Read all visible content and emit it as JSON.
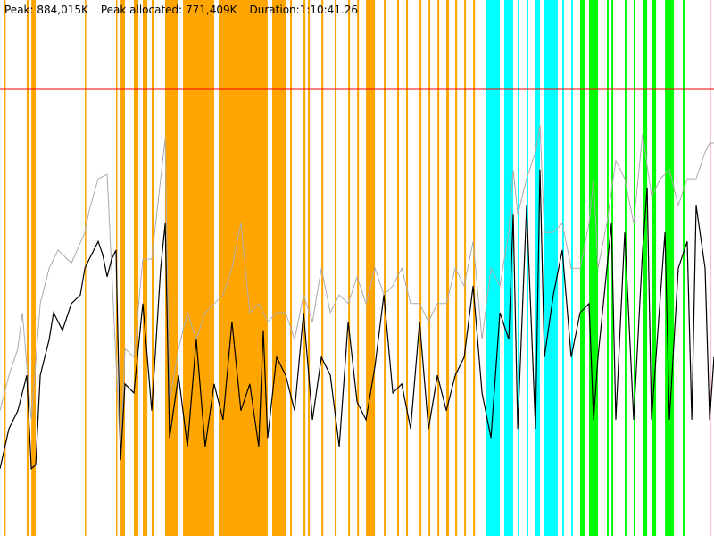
{
  "header": {
    "peak": "Peak: 884,015K",
    "peak_allocated": "Peak allocated: 771,409K",
    "duration": "Duration:1:10:41.26"
  },
  "chart_data": {
    "type": "line",
    "title": "",
    "xlabel": "",
    "ylabel": "",
    "x_unit": "seconds",
    "y_unit": "K",
    "xlim": [
      0,
      4241
    ],
    "ylim": [
      0,
      1060818
    ],
    "grid": false,
    "peak_line": {
      "value": 884015,
      "color": "#ff0000"
    },
    "band_colors": {
      "orange": "#ffa500",
      "cyan": "#00ffff",
      "green": "#00ff00",
      "pink": "#ffc0cb"
    },
    "bands": [
      [
        26,
        29,
        "orange"
      ],
      [
        159,
        175,
        "orange"
      ],
      [
        186,
        212,
        "orange"
      ],
      [
        504,
        507,
        "orange"
      ],
      [
        689,
        692,
        "orange"
      ],
      [
        716,
        742,
        "orange"
      ],
      [
        795,
        822,
        "orange"
      ],
      [
        848,
        875,
        "orange"
      ],
      [
        901,
        912,
        "orange"
      ],
      [
        981,
        1060,
        "orange"
      ],
      [
        1087,
        1272,
        "orange"
      ],
      [
        1299,
        1590,
        "orange"
      ],
      [
        1617,
        1697,
        "orange"
      ],
      [
        1723,
        1734,
        "orange"
      ],
      [
        1803,
        1814,
        "orange"
      ],
      [
        1829,
        1840,
        "orange"
      ],
      [
        1909,
        1920,
        "orange"
      ],
      [
        1988,
        1999,
        "orange"
      ],
      [
        2068,
        2079,
        "orange"
      ],
      [
        2121,
        2132,
        "orange"
      ],
      [
        2174,
        2227,
        "orange"
      ],
      [
        2280,
        2291,
        "orange"
      ],
      [
        2359,
        2370,
        "orange"
      ],
      [
        2412,
        2423,
        "orange"
      ],
      [
        2492,
        2503,
        "orange"
      ],
      [
        2545,
        2556,
        "orange"
      ],
      [
        2598,
        2609,
        "orange"
      ],
      [
        2651,
        2667,
        "orange"
      ],
      [
        2704,
        2715,
        "orange"
      ],
      [
        2757,
        2768,
        "orange"
      ],
      [
        2810,
        2821,
        "orange"
      ],
      [
        2889,
        2969,
        "cyan"
      ],
      [
        2995,
        3048,
        "cyan"
      ],
      [
        3075,
        3085,
        "cyan"
      ],
      [
        3128,
        3138,
        "cyan"
      ],
      [
        3181,
        3207,
        "cyan"
      ],
      [
        3234,
        3313,
        "cyan"
      ],
      [
        3340,
        3350,
        "cyan"
      ],
      [
        3393,
        3403,
        "cyan"
      ],
      [
        3446,
        3472,
        "green"
      ],
      [
        3499,
        3552,
        "green"
      ],
      [
        3605,
        3615,
        "green"
      ],
      [
        3632,
        3642,
        "green"
      ],
      [
        3711,
        3721,
        "green"
      ],
      [
        3764,
        3774,
        "green"
      ],
      [
        3817,
        3844,
        "green"
      ],
      [
        3870,
        3897,
        "green"
      ],
      [
        3950,
        4003,
        "green"
      ],
      [
        4056,
        4066,
        "green"
      ],
      [
        4215,
        4225,
        "pink"
      ]
    ],
    "series": [
      {
        "color": "#aaaaaa",
        "points": [
          [
            0,
            248000
          ],
          [
            53,
            318000
          ],
          [
            106,
            371000
          ],
          [
            133,
            442000
          ],
          [
            186,
            230000
          ],
          [
            239,
            460000
          ],
          [
            292,
            530000
          ],
          [
            345,
            566000
          ],
          [
            424,
            540000
          ],
          [
            504,
            601000
          ],
          [
            530,
            645000
          ],
          [
            583,
            707000
          ],
          [
            636,
            716000
          ],
          [
            716,
            159000
          ],
          [
            742,
            371000
          ],
          [
            795,
            354000
          ],
          [
            848,
            548000
          ],
          [
            901,
            548000
          ],
          [
            954,
            707000
          ],
          [
            981,
            787000
          ],
          [
            1007,
            265000
          ],
          [
            1060,
            371000
          ],
          [
            1113,
            442000
          ],
          [
            1166,
            389000
          ],
          [
            1219,
            442000
          ],
          [
            1272,
            460000
          ],
          [
            1325,
            477000
          ],
          [
            1378,
            530000
          ],
          [
            1431,
            619000
          ],
          [
            1484,
            442000
          ],
          [
            1537,
            460000
          ],
          [
            1590,
            424000
          ],
          [
            1643,
            442000
          ],
          [
            1697,
            442000
          ],
          [
            1750,
            389000
          ],
          [
            1803,
            477000
          ],
          [
            1856,
            424000
          ],
          [
            1909,
            530000
          ],
          [
            1962,
            442000
          ],
          [
            2015,
            477000
          ],
          [
            2068,
            460000
          ],
          [
            2121,
            513000
          ],
          [
            2174,
            460000
          ],
          [
            2227,
            530000
          ],
          [
            2280,
            477000
          ],
          [
            2333,
            495000
          ],
          [
            2386,
            530000
          ],
          [
            2439,
            460000
          ],
          [
            2492,
            460000
          ],
          [
            2545,
            424000
          ],
          [
            2598,
            460000
          ],
          [
            2651,
            460000
          ],
          [
            2704,
            530000
          ],
          [
            2757,
            495000
          ],
          [
            2810,
            583000
          ],
          [
            2863,
            389000
          ],
          [
            2916,
            530000
          ],
          [
            2969,
            495000
          ],
          [
            3022,
            601000
          ],
          [
            3048,
            725000
          ],
          [
            3075,
            636000
          ],
          [
            3128,
            707000
          ],
          [
            3181,
            760000
          ],
          [
            3207,
            813000
          ],
          [
            3234,
            601000
          ],
          [
            3287,
            601000
          ],
          [
            3340,
            619000
          ],
          [
            3393,
            530000
          ],
          [
            3446,
            530000
          ],
          [
            3499,
            619000
          ],
          [
            3526,
            707000
          ],
          [
            3552,
            530000
          ],
          [
            3605,
            619000
          ],
          [
            3658,
            743000
          ],
          [
            3711,
            707000
          ],
          [
            3764,
            619000
          ],
          [
            3817,
            796000
          ],
          [
            3870,
            672000
          ],
          [
            3923,
            707000
          ],
          [
            3976,
            725000
          ],
          [
            4029,
            654000
          ],
          [
            4082,
            707000
          ],
          [
            4135,
            707000
          ],
          [
            4188,
            760000
          ],
          [
            4215,
            778000
          ],
          [
            4241,
            778000
          ]
        ]
      },
      {
        "color": "#000000",
        "points": [
          [
            0,
            133000
          ],
          [
            53,
            212000
          ],
          [
            106,
            248000
          ],
          [
            159,
            318000
          ],
          [
            186,
            133000
          ],
          [
            212,
            141000
          ],
          [
            239,
            318000
          ],
          [
            292,
            389000
          ],
          [
            318,
            442000
          ],
          [
            371,
            407000
          ],
          [
            424,
            460000
          ],
          [
            477,
            477000
          ],
          [
            504,
            530000
          ],
          [
            530,
            548000
          ],
          [
            583,
            583000
          ],
          [
            610,
            557000
          ],
          [
            636,
            513000
          ],
          [
            663,
            548000
          ],
          [
            689,
            566000
          ],
          [
            716,
            150000
          ],
          [
            742,
            301000
          ],
          [
            795,
            283000
          ],
          [
            848,
            460000
          ],
          [
            901,
            248000
          ],
          [
            954,
            530000
          ],
          [
            981,
            619000
          ],
          [
            1007,
            194000
          ],
          [
            1060,
            318000
          ],
          [
            1113,
            177000
          ],
          [
            1166,
            389000
          ],
          [
            1219,
            177000
          ],
          [
            1272,
            301000
          ],
          [
            1325,
            230000
          ],
          [
            1378,
            424000
          ],
          [
            1431,
            248000
          ],
          [
            1484,
            301000
          ],
          [
            1537,
            177000
          ],
          [
            1564,
            407000
          ],
          [
            1590,
            194000
          ],
          [
            1643,
            354000
          ],
          [
            1697,
            318000
          ],
          [
            1750,
            248000
          ],
          [
            1803,
            442000
          ],
          [
            1856,
            230000
          ],
          [
            1909,
            354000
          ],
          [
            1962,
            318000
          ],
          [
            2015,
            177000
          ],
          [
            2068,
            424000
          ],
          [
            2121,
            265000
          ],
          [
            2174,
            230000
          ],
          [
            2227,
            336000
          ],
          [
            2280,
            477000
          ],
          [
            2333,
            283000
          ],
          [
            2386,
            301000
          ],
          [
            2439,
            212000
          ],
          [
            2492,
            424000
          ],
          [
            2545,
            212000
          ],
          [
            2598,
            318000
          ],
          [
            2651,
            248000
          ],
          [
            2704,
            318000
          ],
          [
            2757,
            354000
          ],
          [
            2810,
            495000
          ],
          [
            2863,
            283000
          ],
          [
            2916,
            194000
          ],
          [
            2969,
            442000
          ],
          [
            3022,
            389000
          ],
          [
            3048,
            636000
          ],
          [
            3075,
            212000
          ],
          [
            3128,
            654000
          ],
          [
            3181,
            212000
          ],
          [
            3207,
            725000
          ],
          [
            3234,
            354000
          ],
          [
            3287,
            477000
          ],
          [
            3340,
            566000
          ],
          [
            3393,
            354000
          ],
          [
            3446,
            442000
          ],
          [
            3499,
            460000
          ],
          [
            3526,
            230000
          ],
          [
            3552,
            354000
          ],
          [
            3605,
            530000
          ],
          [
            3632,
            619000
          ],
          [
            3658,
            230000
          ],
          [
            3711,
            601000
          ],
          [
            3764,
            230000
          ],
          [
            3817,
            566000
          ],
          [
            3844,
            690000
          ],
          [
            3870,
            230000
          ],
          [
            3923,
            477000
          ],
          [
            3950,
            601000
          ],
          [
            3976,
            230000
          ],
          [
            4029,
            530000
          ],
          [
            4082,
            583000
          ],
          [
            4109,
            230000
          ],
          [
            4135,
            654000
          ],
          [
            4188,
            530000
          ],
          [
            4215,
            230000
          ],
          [
            4241,
            354000
          ]
        ]
      }
    ]
  }
}
